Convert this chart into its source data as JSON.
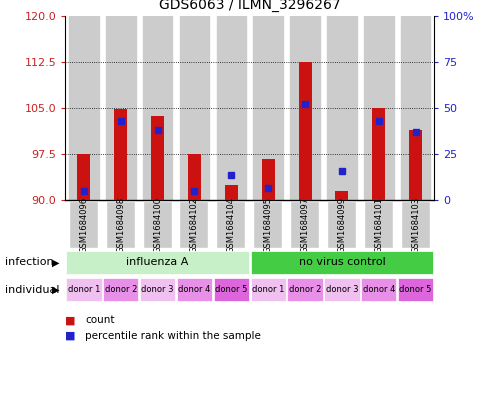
{
  "title": "GDS6063 / ILMN_3296267",
  "samples": [
    "GSM1684096",
    "GSM1684098",
    "GSM1684100",
    "GSM1684102",
    "GSM1684104",
    "GSM1684095",
    "GSM1684097",
    "GSM1684099",
    "GSM1684101",
    "GSM1684103"
  ],
  "count_values": [
    97.5,
    104.8,
    103.7,
    97.5,
    92.5,
    96.8,
    112.5,
    91.5,
    105.0,
    101.5
  ],
  "percentile_values": [
    5,
    43,
    38,
    5,
    14,
    7,
    52,
    16,
    43,
    37
  ],
  "y_min": 90,
  "y_max": 120,
  "y_ticks_left": [
    90,
    97.5,
    105,
    112.5,
    120
  ],
  "y_ticks_right_vals": [
    0,
    25,
    50,
    75,
    100
  ],
  "y_ticks_right_labels": [
    "0",
    "25",
    "50",
    "75",
    "100%"
  ],
  "infection_groups": [
    {
      "label": "influenza A",
      "start": 0,
      "end": 5,
      "color": "#c8f0c8"
    },
    {
      "label": "no virus control",
      "start": 5,
      "end": 10,
      "color": "#44cc44"
    }
  ],
  "individual_labels": [
    "donor 1",
    "donor 2",
    "donor 3",
    "donor 4",
    "donor 5",
    "donor 1",
    "donor 2",
    "donor 3",
    "donor 4",
    "donor 5"
  ],
  "individual_colors": [
    "#f0c0f0",
    "#e890e8",
    "#f0c0f0",
    "#e890e8",
    "#dd66dd",
    "#f0c0f0",
    "#e890e8",
    "#f0c0f0",
    "#e890e8",
    "#dd66dd"
  ],
  "bar_color": "#cc1111",
  "percentile_color": "#2222cc",
  "left_axis_color": "#cc2222",
  "right_axis_color": "#2222cc",
  "bg_color": "#ffffff",
  "sample_bg_color": "#cccccc",
  "plot_bg_color": "#ffffff"
}
